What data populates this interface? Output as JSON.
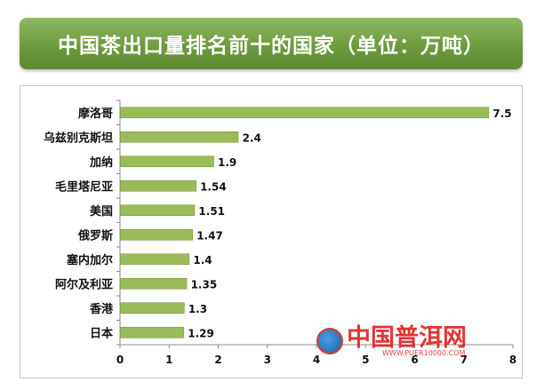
{
  "title": "中国茶出口量排名前十的国家（单位：万吨）",
  "watermark": {
    "name": "中国普洱网",
    "url": "WWW.PUER10000.COM"
  },
  "colors": {
    "banner": "#6e9a3e",
    "bar": "#9bbb59",
    "bar_edge": "#7a9a44",
    "text": "#111111"
  },
  "chart_data": {
    "type": "bar",
    "orientation": "horizontal",
    "title": "中国茶出口量排名前十的国家（单位：万吨）",
    "categories": [
      "摩洛哥",
      "乌兹别克斯坦",
      "加纳",
      "毛里塔尼亚",
      "美国",
      "俄罗斯",
      "塞内加尔",
      "阿尔及利亚",
      "香港",
      "日本"
    ],
    "values": [
      7.5,
      2.4,
      1.9,
      1.54,
      1.51,
      1.47,
      1.4,
      1.35,
      1.3,
      1.29
    ],
    "value_labels": [
      "7.5",
      "2.4",
      "1.9",
      "1.54",
      "1.51",
      "1.47",
      "1.4",
      "1.35",
      "1.3",
      "1.29"
    ],
    "xticks": [
      "0",
      "1",
      "2",
      "3",
      "4",
      "5",
      "6",
      "7",
      "8"
    ],
    "xlim": [
      0,
      8
    ],
    "grid": false,
    "legend": "none"
  }
}
